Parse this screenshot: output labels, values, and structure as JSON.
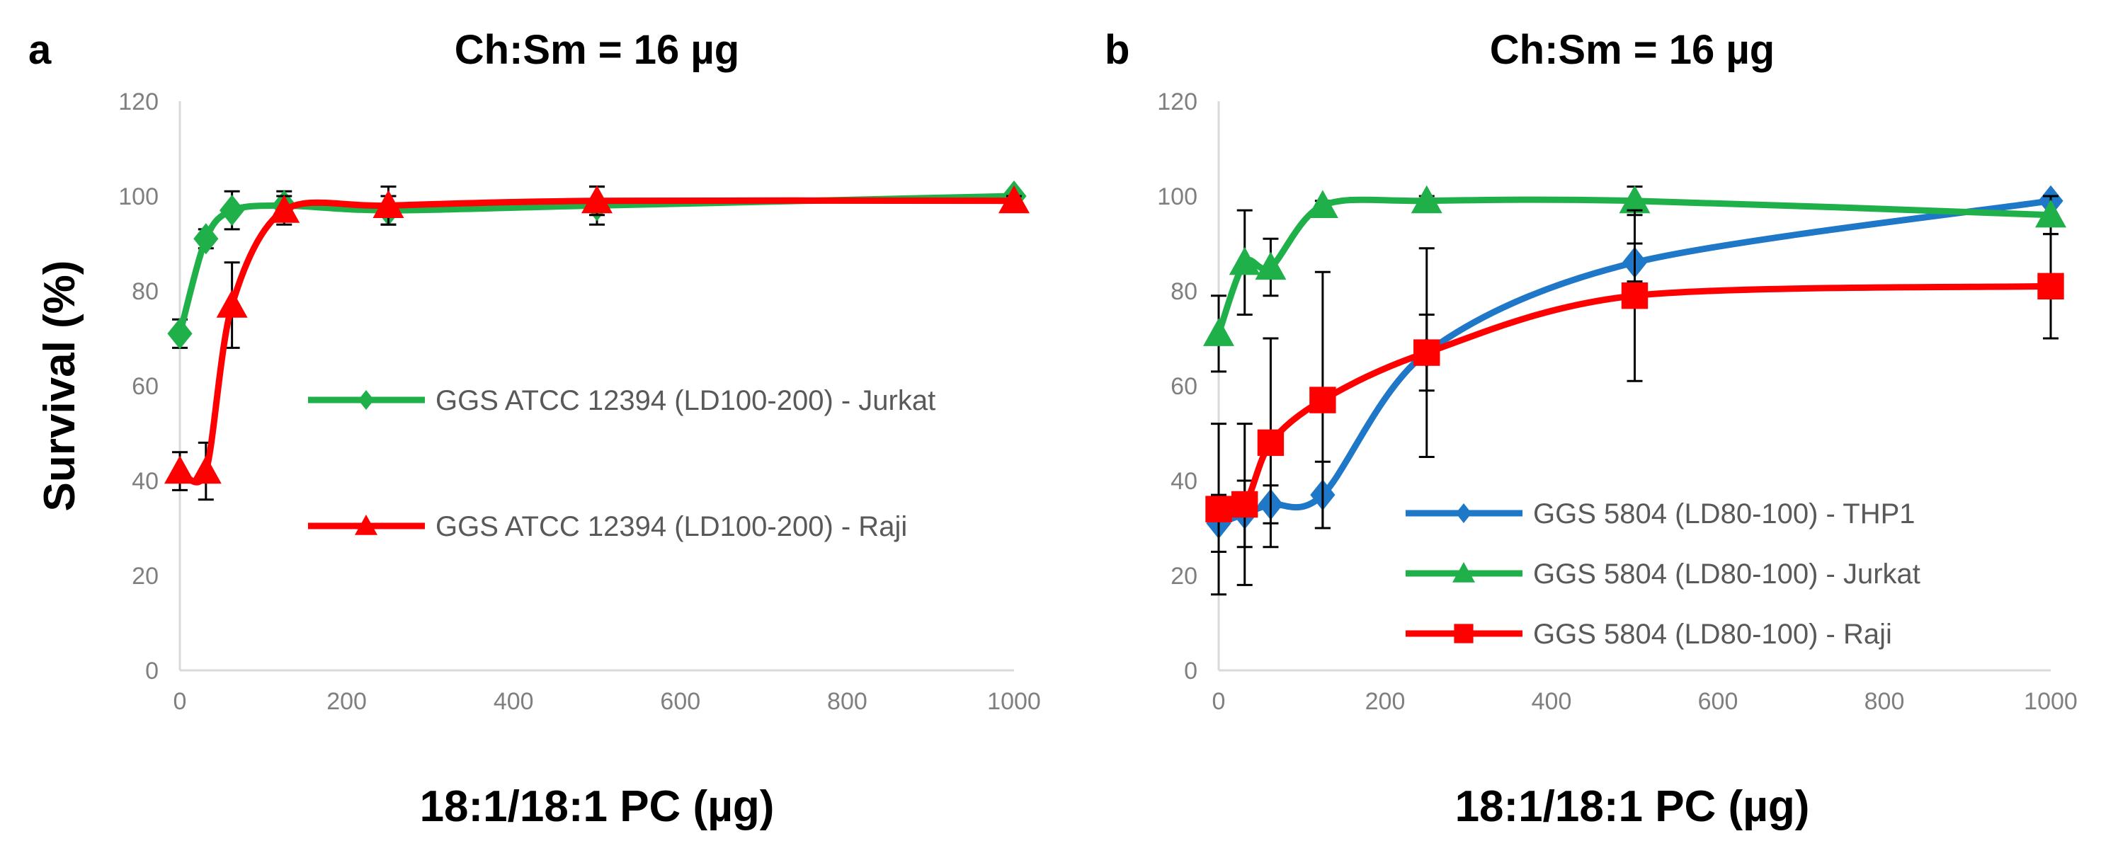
{
  "chart_data": [
    {
      "type": "line",
      "panel_label": "a",
      "title": "Ch:Sm = 16 µg",
      "xlabel": "18:1/18:1 PC (µg)",
      "ylabel": "Survival (%)",
      "xlim": [
        0,
        1000
      ],
      "ylim": [
        0,
        120
      ],
      "xticks": [
        0,
        200,
        400,
        600,
        800,
        1000
      ],
      "yticks": [
        0,
        20,
        40,
        60,
        80,
        100,
        120
      ],
      "grid": false,
      "legend_position": "center-right",
      "x": [
        0,
        31.25,
        62.5,
        125,
        250,
        500,
        1000
      ],
      "series": [
        {
          "name": "GGS ATCC 12394 (LD100-200) - Jurkat",
          "color": "#1fb04a",
          "marker": "diamond",
          "values": [
            71,
            91,
            97,
            98,
            97,
            98,
            100
          ],
          "errors": [
            3,
            2,
            4,
            3,
            3,
            4,
            1
          ]
        },
        {
          "name": "GGS ATCC 12394 (LD100-200) - Raji",
          "color": "#ff0000",
          "marker": "triangle",
          "values": [
            42,
            42,
            77,
            97,
            98,
            99,
            99
          ],
          "errors": [
            4,
            6,
            9,
            3,
            4,
            3,
            1
          ]
        }
      ]
    },
    {
      "type": "line",
      "panel_label": "b",
      "title": "Ch:Sm = 16 µg",
      "xlabel": "18:1/18:1 PC (µg)",
      "ylabel": "",
      "xlim": [
        0,
        1000
      ],
      "ylim": [
        0,
        120
      ],
      "xticks": [
        0,
        200,
        400,
        600,
        800,
        1000
      ],
      "yticks": [
        0,
        20,
        40,
        60,
        80,
        100,
        120
      ],
      "grid": false,
      "legend_position": "bottom-right",
      "x": [
        0,
        31.25,
        62.5,
        125,
        250,
        500,
        1000
      ],
      "series": [
        {
          "name": "GGS 5804 (LD80-100) - THP1",
          "color": "#1f77c8",
          "marker": "diamond",
          "values": [
            31,
            33,
            35,
            37,
            67,
            86,
            99
          ],
          "errors": [
            6,
            7,
            4,
            7,
            8,
            4,
            1
          ]
        },
        {
          "name": "GGS 5804 (LD80-100) - Jurkat",
          "color": "#1fb04a",
          "marker": "triangle",
          "values": [
            71,
            86,
            85,
            98,
            99,
            99,
            96
          ],
          "errors": [
            8,
            11,
            6,
            1,
            1,
            3,
            4
          ]
        },
        {
          "name": "GGS 5804 (LD80-100) - Raji",
          "color": "#ff0000",
          "marker": "square",
          "values": [
            34,
            35,
            48,
            57,
            67,
            79,
            81
          ],
          "errors": [
            18,
            17,
            22,
            27,
            22,
            18,
            11
          ]
        }
      ]
    }
  ]
}
